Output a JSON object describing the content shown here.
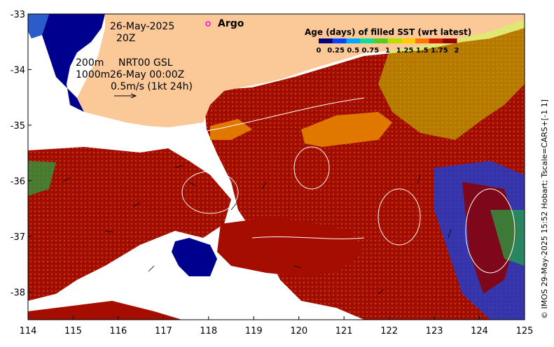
{
  "map": {
    "date_label": "26-May-2025",
    "time_label": "20Z",
    "argo_label": "Argo",
    "depth_200": "200m",
    "depth_1000": "1000m",
    "product_label": "NRT00 GSL",
    "product_time": "26-May 00:00Z",
    "vector_scale": "0.5m/s (1kt 24h)",
    "credit": "© IMOS 29-May-2025 15:52 Hobart; Tscale=CARS+[-1 1]",
    "x_ticks": [
      "114",
      "115",
      "116",
      "117",
      "118",
      "119",
      "120",
      "121",
      "122",
      "123",
      "124",
      "125"
    ],
    "y_ticks": [
      "-33",
      "-34",
      "-35",
      "-36",
      "-37",
      "-38"
    ],
    "lon_range": [
      114,
      125
    ],
    "lat_range": [
      -38.5,
      -33
    ]
  },
  "colorbar": {
    "title": "Age (days) of filled SST (wrt latest)",
    "tick_labels": [
      "0",
      "0.25",
      "0.5",
      "0.75",
      "1",
      "1.25",
      "1.5",
      "1.75",
      "2"
    ],
    "range": [
      0,
      2
    ],
    "colors": [
      "#00007f",
      "#0044ff",
      "#00aaff",
      "#11dd99",
      "#55cc22",
      "#bbdd00",
      "#ffcc00",
      "#ff7700",
      "#cc2200",
      "#990000"
    ]
  },
  "colors": {
    "land": "#fbc898",
    "frame": "#000000",
    "argo_marker": "#ff00ff",
    "contour": "#ffffff"
  }
}
